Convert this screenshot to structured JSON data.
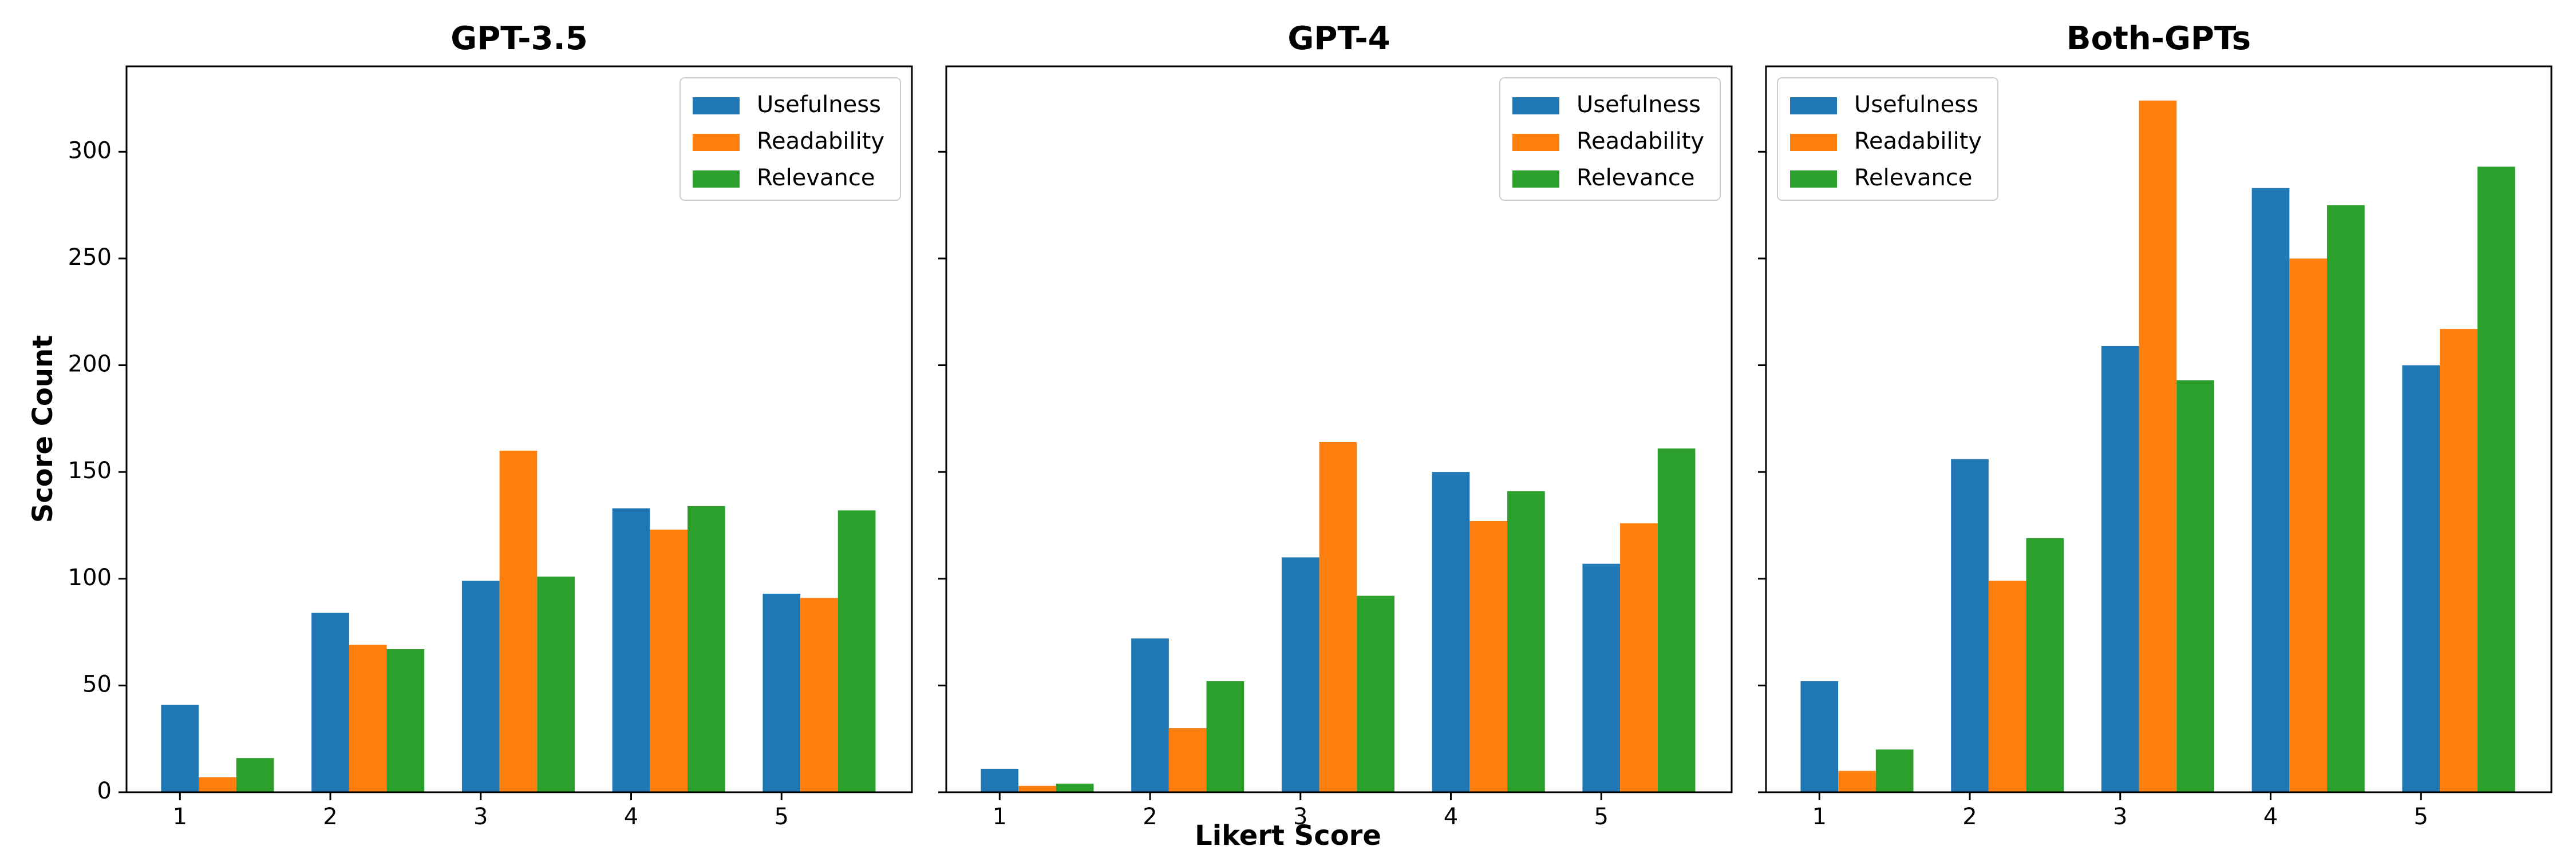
{
  "chart_data": [
    {
      "type": "bar",
      "title": "GPT-3.5",
      "categories": [
        "1",
        "2",
        "3",
        "4",
        "5"
      ],
      "series": [
        {
          "name": "Usefulness",
          "color": "#1f77b4",
          "values": [
            41,
            84,
            99,
            133,
            93
          ]
        },
        {
          "name": "Readability",
          "color": "#ff7f0e",
          "values": [
            7,
            69,
            160,
            123,
            91
          ]
        },
        {
          "name": "Relevance",
          "color": "#2ca02c",
          "values": [
            16,
            67,
            101,
            134,
            132
          ]
        }
      ],
      "ylim": [
        0,
        340
      ],
      "yticks": [
        0,
        50,
        100,
        150,
        200,
        250,
        300
      ],
      "legend": "top-right",
      "grid": false
    },
    {
      "type": "bar",
      "title": "GPT-4",
      "categories": [
        "1",
        "2",
        "3",
        "4",
        "5"
      ],
      "series": [
        {
          "name": "Usefulness",
          "color": "#1f77b4",
          "values": [
            11,
            72,
            110,
            150,
            107
          ]
        },
        {
          "name": "Readability",
          "color": "#ff7f0e",
          "values": [
            3,
            30,
            164,
            127,
            126
          ]
        },
        {
          "name": "Relevance",
          "color": "#2ca02c",
          "values": [
            4,
            52,
            92,
            141,
            161
          ]
        }
      ],
      "ylim": [
        0,
        340
      ],
      "yticks": [
        0,
        50,
        100,
        150,
        200,
        250,
        300
      ],
      "legend": "top-right",
      "grid": false
    },
    {
      "type": "bar",
      "title": "Both-GPTs",
      "categories": [
        "1",
        "2",
        "3",
        "4",
        "5"
      ],
      "series": [
        {
          "name": "Usefulness",
          "color": "#1f77b4",
          "values": [
            52,
            156,
            209,
            283,
            200
          ]
        },
        {
          "name": "Readability",
          "color": "#ff7f0e",
          "values": [
            10,
            99,
            324,
            250,
            217
          ]
        },
        {
          "name": "Relevance",
          "color": "#2ca02c",
          "values": [
            20,
            119,
            193,
            275,
            293
          ]
        }
      ],
      "ylim": [
        0,
        340
      ],
      "yticks": [
        0,
        50,
        100,
        150,
        200,
        250,
        300
      ],
      "legend": "top-left",
      "grid": false
    }
  ],
  "shared": {
    "ylabel": "Score Count",
    "xlabel": "Likert Score"
  }
}
